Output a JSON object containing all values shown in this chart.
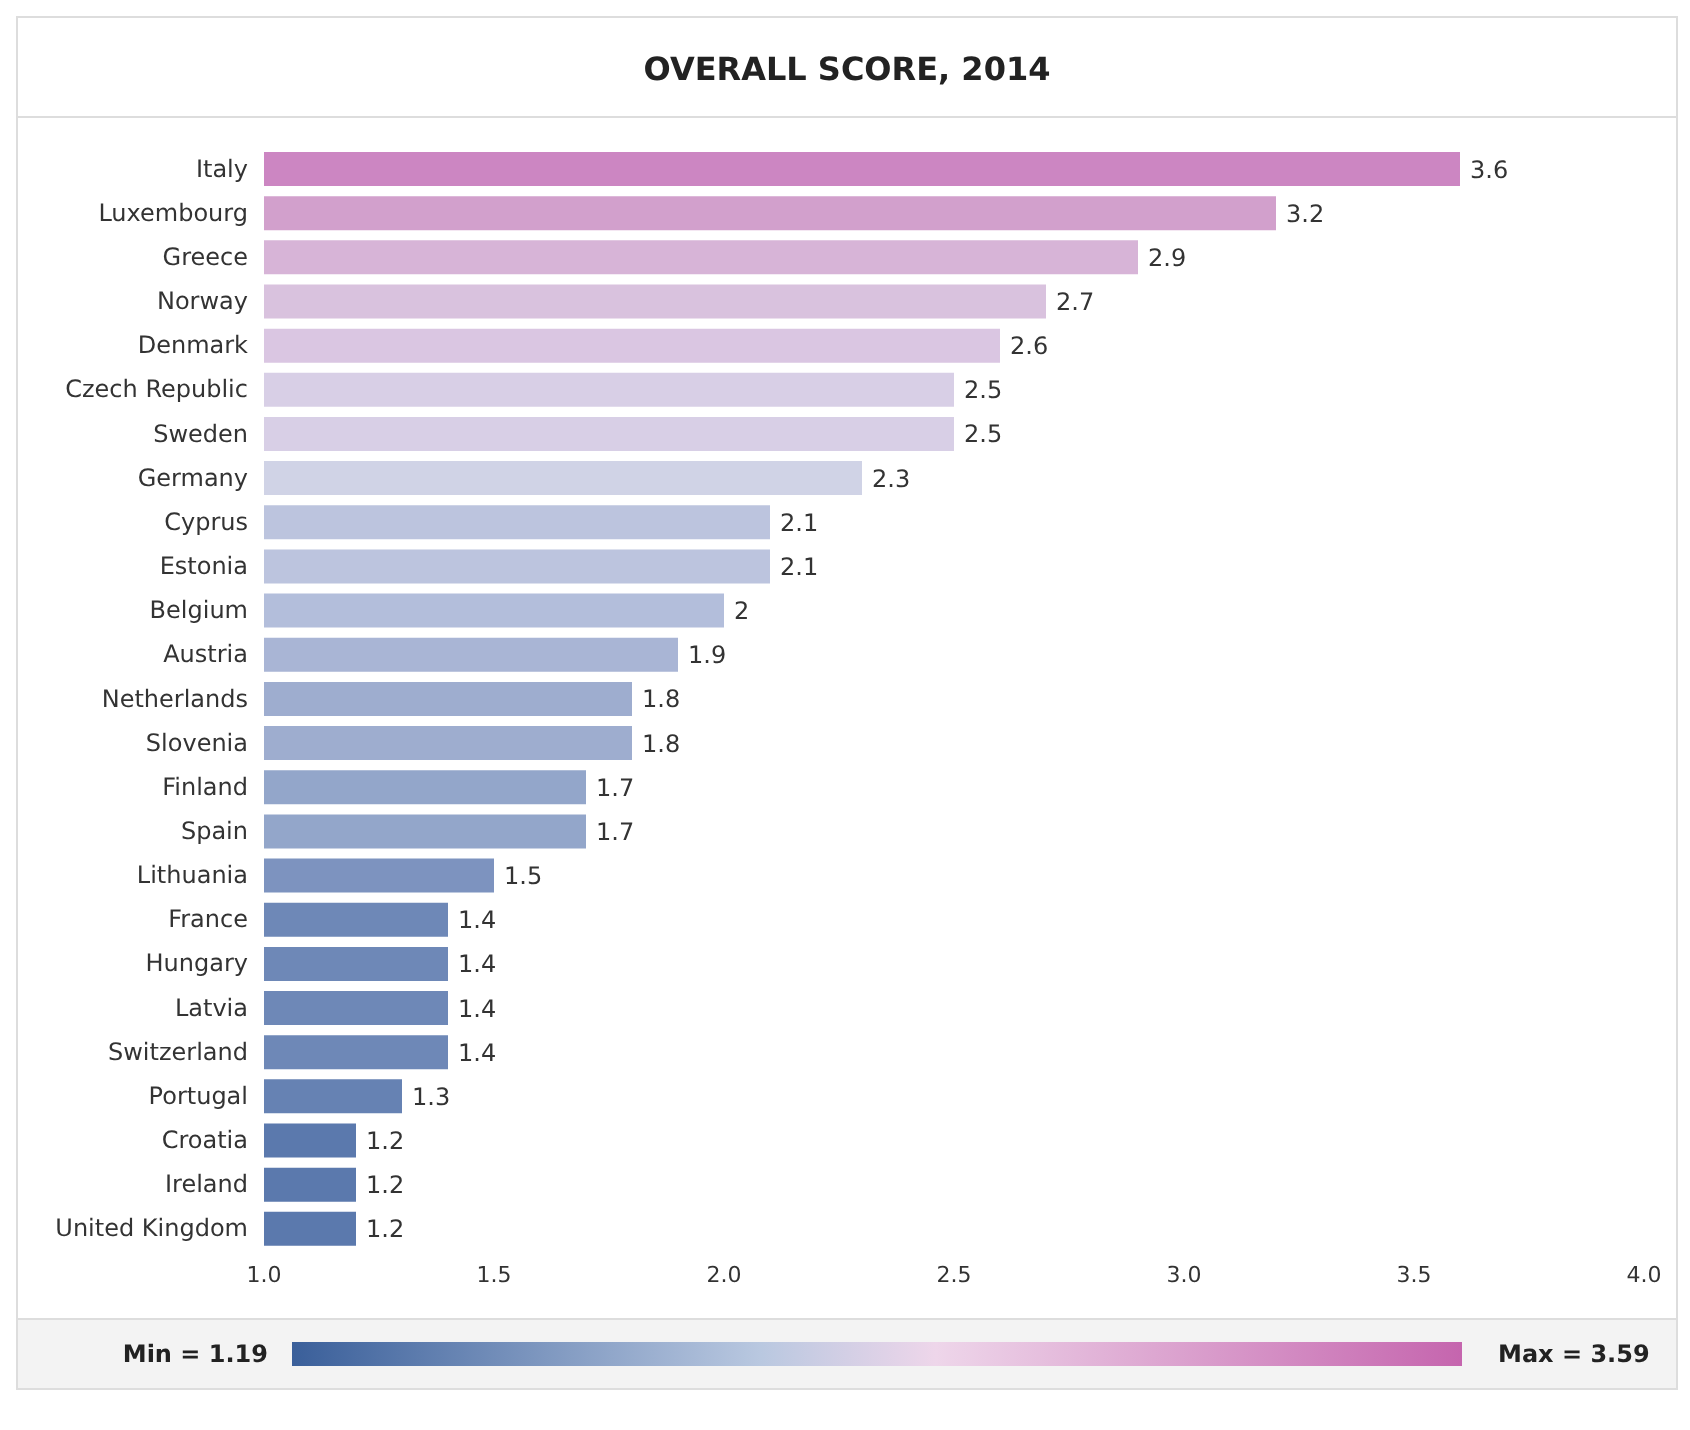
{
  "chart_data": {
    "type": "bar",
    "orientation": "horizontal",
    "title": "OVERALL SCORE, 2014",
    "categories": [
      "Italy",
      "Luxembourg",
      "Greece",
      "Norway",
      "Denmark",
      "Czech Republic",
      "Sweden",
      "Germany",
      "Cyprus",
      "Estonia",
      "Belgium",
      "Austria",
      "Netherlands",
      "Slovenia",
      "Finland",
      "Spain",
      "Lithuania",
      "France",
      "Hungary",
      "Latvia",
      "Switzerland",
      "Portugal",
      "Croatia",
      "Ireland",
      "United Kingdom"
    ],
    "values": [
      3.6,
      3.2,
      2.9,
      2.7,
      2.6,
      2.5,
      2.5,
      2.3,
      2.1,
      2.1,
      2,
      1.9,
      1.8,
      1.8,
      1.7,
      1.7,
      1.5,
      1.4,
      1.4,
      1.4,
      1.4,
      1.3,
      1.2,
      1.2,
      1.2
    ],
    "colors": [
      "#cc86c2",
      "#d2a0cc",
      "#d7b4d7",
      "#d9c2de",
      "#dac6e2",
      "#d8cfe6",
      "#d8cfe6",
      "#d0d3e6",
      "#bcc4de",
      "#bcc4de",
      "#b3bedb",
      "#a9b5d5",
      "#9eadcf",
      "#9eadcf",
      "#93a6ca",
      "#93a6ca",
      "#7d93bf",
      "#6e88b7",
      "#6e88b7",
      "#6e88b7",
      "#6e88b7",
      "#6682b3",
      "#5b79ad",
      "#5b79ad",
      "#5b79ad"
    ],
    "xlim": [
      1,
      4
    ],
    "xticks": [
      {
        "value": 1,
        "label": "1.0"
      },
      {
        "value": 1.5,
        "label": "1.5"
      },
      {
        "value": 2,
        "label": "2.0"
      },
      {
        "value": 2.5,
        "label": "2.5"
      },
      {
        "value": 3,
        "label": "3.0"
      },
      {
        "value": 3.5,
        "label": "3.5"
      },
      {
        "value": 4,
        "label": "4.0"
      }
    ],
    "data_labels": true,
    "grid": false,
    "legend": false,
    "annotations": [
      "Min = 1.19",
      "Max = 3.59"
    ]
  }
}
